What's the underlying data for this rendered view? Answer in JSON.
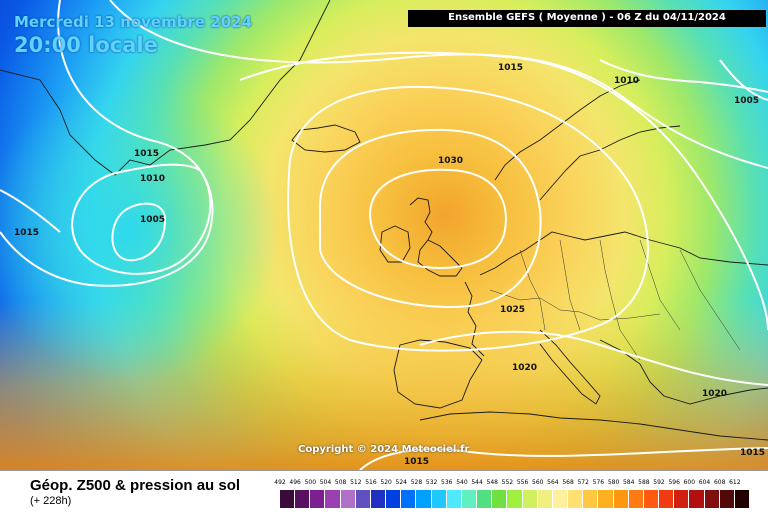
{
  "header": {
    "date_text": "Mercredi 13 novembre 2024",
    "time_text": "20:00 locale",
    "model_text": "Ensemble GEFS  ( Moyenne )  -  06 Z du 04/11/2024"
  },
  "copyright": "Copyright © 2024 Meteociel.fr",
  "footer": {
    "title": "Géop. Z500 & pression au sol",
    "subtitle": "(+ 228h)"
  },
  "isobar_labels": [
    "1015",
    "1010",
    "1005",
    "1015",
    "1010",
    "1005",
    "1015",
    "1030",
    "1025",
    "1020",
    "1020",
    "1015",
    "1015"
  ],
  "legend": {
    "values": [
      "492",
      "496",
      "500",
      "504",
      "508",
      "512",
      "516",
      "520",
      "524",
      "528",
      "532",
      "536",
      "540",
      "544",
      "548",
      "552",
      "556",
      "560",
      "564",
      "568",
      "572",
      "576",
      "580",
      "584",
      "588",
      "592",
      "596",
      "600",
      "604",
      "608",
      "612"
    ],
    "colors": [
      "#3a0a3a",
      "#5a1060",
      "#7a2090",
      "#9a40b0",
      "#b070c8",
      "#6050c0",
      "#2030c0",
      "#0040e0",
      "#0070ff",
      "#00a0ff",
      "#20c8ff",
      "#50e8ff",
      "#60f0c0",
      "#50e080",
      "#70e040",
      "#a0f040",
      "#d0f060",
      "#f0f080",
      "#fff0a0",
      "#ffe070",
      "#ffc840",
      "#ffb020",
      "#ff9810",
      "#ff7a10",
      "#ff5a10",
      "#f03a10",
      "#d02010",
      "#b01010",
      "#801010",
      "#500808",
      "#200000"
    ]
  },
  "colors": {
    "overlay_text": "#5fd3ff",
    "isobar": "#ffffff"
  }
}
